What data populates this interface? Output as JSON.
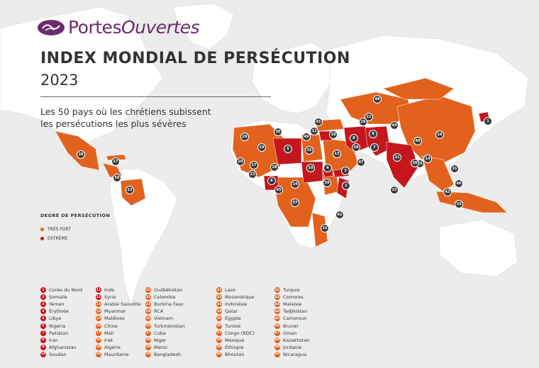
{
  "brand": {
    "name_regular": "Portes",
    "name_italic": "Ouvertes"
  },
  "title": "INDEX MONDIAL DE PERSÉCUTION",
  "year": "2023",
  "subtitle_line1": "Les 50 pays où les chrétiens subissent",
  "subtitle_line2": "les persécutions les plus sévères",
  "legend": {
    "title": "DEGRÉ DE PERSÉCUTION",
    "items": [
      {
        "label": "TRÈS FORT",
        "color": "#e2621d"
      },
      {
        "label": "EXTRÊME",
        "color": "#c5161d"
      }
    ]
  },
  "colors": {
    "very_high": "#e2621d",
    "extreme": "#c5161d",
    "land": "#ffffff",
    "ocean": "#ececec",
    "badge": "#3a3a3a"
  },
  "countries": [
    {
      "rank": "1",
      "name": "Corée du Nord",
      "level": "extreme"
    },
    {
      "rank": "2",
      "name": "Somalie",
      "level": "extreme"
    },
    {
      "rank": "3",
      "name": "Yémen",
      "level": "extreme"
    },
    {
      "rank": "4",
      "name": "Érythrée",
      "level": "extreme"
    },
    {
      "rank": "5",
      "name": "Libye",
      "level": "extreme"
    },
    {
      "rank": "6",
      "name": "Nigeria",
      "level": "extreme"
    },
    {
      "rank": "7",
      "name": "Pakistan",
      "level": "extreme"
    },
    {
      "rank": "8",
      "name": "Iran",
      "level": "extreme"
    },
    {
      "rank": "9",
      "name": "Afghanistan",
      "level": "extreme"
    },
    {
      "rank": "10",
      "name": "Soudan",
      "level": "extreme"
    },
    {
      "rank": "11",
      "name": "Inde",
      "level": "extreme"
    },
    {
      "rank": "12",
      "name": "Syrie",
      "level": "extreme"
    },
    {
      "rank": "13",
      "name": "Arabie Saoudite",
      "level": "very_high"
    },
    {
      "rank": "14",
      "name": "Myanmar",
      "level": "very_high"
    },
    {
      "rank": "15",
      "name": "Maldives",
      "level": "very_high"
    },
    {
      "rank": "16",
      "name": "Chine",
      "level": "very_high"
    },
    {
      "rank": "17",
      "name": "Mali",
      "level": "very_high"
    },
    {
      "rank": "18",
      "name": "Irak",
      "level": "very_high"
    },
    {
      "rank": "19",
      "name": "Algérie",
      "level": "very_high"
    },
    {
      "rank": "20",
      "name": "Mauritanie",
      "level": "very_high"
    },
    {
      "rank": "21",
      "name": "Ouzbékistan",
      "level": "very_high"
    },
    {
      "rank": "22",
      "name": "Colombie",
      "level": "very_high"
    },
    {
      "rank": "23",
      "name": "Burkina Faso",
      "level": "very_high"
    },
    {
      "rank": "24",
      "name": "RCA",
      "level": "very_high"
    },
    {
      "rank": "25",
      "name": "Vietnam",
      "level": "very_high"
    },
    {
      "rank": "26",
      "name": "Turkménistan",
      "level": "very_high"
    },
    {
      "rank": "27",
      "name": "Cuba",
      "level": "very_high"
    },
    {
      "rank": "28",
      "name": "Niger",
      "level": "very_high"
    },
    {
      "rank": "29",
      "name": "Maroc",
      "level": "very_high"
    },
    {
      "rank": "30",
      "name": "Bangladesh",
      "level": "very_high"
    },
    {
      "rank": "31",
      "name": "Laos",
      "level": "very_high"
    },
    {
      "rank": "32",
      "name": "Mozambique",
      "level": "very_high"
    },
    {
      "rank": "33",
      "name": "Indonésie",
      "level": "very_high"
    },
    {
      "rank": "34",
      "name": "Qatar",
      "level": "very_high"
    },
    {
      "rank": "35",
      "name": "Égypte",
      "level": "very_high"
    },
    {
      "rank": "36",
      "name": "Tunisie",
      "level": "very_high"
    },
    {
      "rank": "37",
      "name": "Congo (RDC)",
      "level": "very_high"
    },
    {
      "rank": "38",
      "name": "Mexique",
      "level": "very_high"
    },
    {
      "rank": "39",
      "name": "Éthiopie",
      "level": "very_high"
    },
    {
      "rank": "40",
      "name": "Bhoutan",
      "level": "very_high"
    },
    {
      "rank": "41",
      "name": "Turquie",
      "level": "very_high"
    },
    {
      "rank": "42",
      "name": "Comores",
      "level": "very_high"
    },
    {
      "rank": "43",
      "name": "Malaisie",
      "level": "very_high"
    },
    {
      "rank": "44",
      "name": "Tadjikistan",
      "level": "very_high"
    },
    {
      "rank": "45",
      "name": "Cameroun",
      "level": "very_high"
    },
    {
      "rank": "46",
      "name": "Brunei",
      "level": "very_high"
    },
    {
      "rank": "47",
      "name": "Oman",
      "level": "very_high"
    },
    {
      "rank": "48",
      "name": "Kazakhstan",
      "level": "very_high"
    },
    {
      "rank": "49",
      "name": "Jordanie",
      "level": "very_high"
    },
    {
      "rank": "50",
      "name": "Nicaragua",
      "level": "very_high"
    }
  ]
}
